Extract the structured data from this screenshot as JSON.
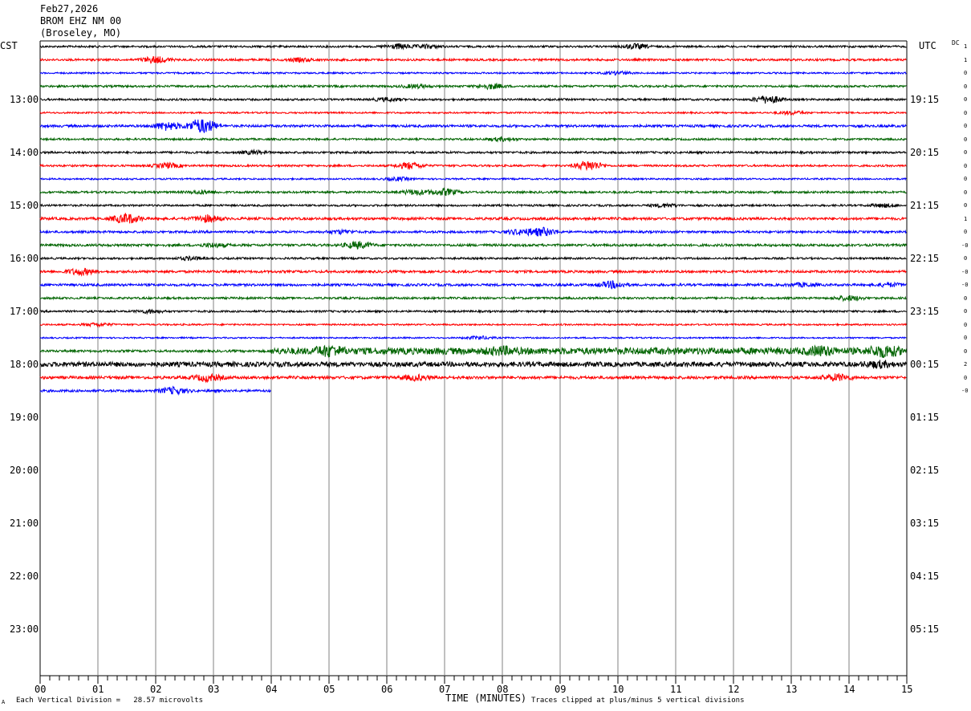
{
  "header": {
    "date": "Feb27,2026",
    "station": "BROM EHZ NM 00",
    "location": "(Broseley, MO)"
  },
  "left_tz": "CST",
  "right_tz": "UTC",
  "dc_label": "DC",
  "footer": {
    "scale": "Each Vertical Division =   28.57 microvolts",
    "clip_note": "Traces clipped at plus/minus 5 vertical divisions",
    "corner_mark": "A"
  },
  "colors": [
    "#000000",
    "#ff0000",
    "#0000ff",
    "#006400"
  ],
  "chart_data": {
    "type": "line",
    "xlabel": "TIME (MINUTES)",
    "xlim": [
      0,
      15
    ],
    "x_ticks": [
      "00",
      "01",
      "02",
      "03",
      "04",
      "05",
      "06",
      "07",
      "08",
      "09",
      "10",
      "11",
      "12",
      "13",
      "14",
      "15"
    ],
    "rows_per_hour": 4,
    "start_hour_cst": 12,
    "y_ticks_left": [
      "13:00",
      "14:00",
      "15:00",
      "16:00",
      "17:00",
      "18:00",
      "19:00",
      "20:00",
      "21:00",
      "22:00",
      "23:00"
    ],
    "y_ticks_right": [
      "19:15",
      "20:15",
      "21:15",
      "22:15",
      "23:15",
      "00:15",
      "01:15",
      "02:15",
      "03:15",
      "04:15",
      "05:15"
    ],
    "dc_offsets": [
      "1",
      "1",
      "0",
      "0",
      "0",
      "0",
      "0",
      "0",
      "0",
      "0",
      "0",
      "0",
      "0",
      "1",
      "0",
      "-0",
      "0",
      "-0",
      "-0",
      "0",
      "0",
      "0",
      "0",
      "0",
      "2",
      "0",
      "-0"
    ],
    "traces": [
      {
        "amp": 1.2,
        "events": [
          [
            6.2,
            3
          ],
          [
            10.3,
            3
          ],
          [
            6.7,
            2
          ]
        ],
        "span_min": 15
      },
      {
        "amp": 1.3,
        "events": [
          [
            2.0,
            4
          ],
          [
            4.5,
            2
          ]
        ],
        "span_min": 15
      },
      {
        "amp": 1.0,
        "events": [
          [
            10.0,
            2
          ]
        ],
        "span_min": 15
      },
      {
        "amp": 1.3,
        "events": [
          [
            7.8,
            3
          ],
          [
            6.5,
            2
          ]
        ],
        "span_min": 15
      },
      {
        "amp": 1.2,
        "events": [
          [
            12.6,
            5
          ],
          [
            6.0,
            2
          ]
        ],
        "span_min": 15
      },
      {
        "amp": 1.0,
        "events": [
          [
            13.0,
            2
          ]
        ],
        "span_min": 15
      },
      {
        "amp": 1.5,
        "events": [
          [
            2.8,
            10
          ],
          [
            2.2,
            5
          ]
        ],
        "span_min": 15
      },
      {
        "amp": 1.2,
        "events": [
          [
            8.0,
            2
          ]
        ],
        "span_min": 15
      },
      {
        "amp": 1.3,
        "events": [
          [
            3.7,
            2
          ]
        ],
        "span_min": 15
      },
      {
        "amp": 1.2,
        "events": [
          [
            9.5,
            6
          ],
          [
            6.4,
            4
          ],
          [
            2.2,
            3
          ]
        ],
        "span_min": 15
      },
      {
        "amp": 1.0,
        "events": [
          [
            6.2,
            2
          ]
        ],
        "span_min": 15
      },
      {
        "amp": 1.3,
        "events": [
          [
            7.0,
            4
          ],
          [
            6.5,
            3
          ],
          [
            2.8,
            2
          ]
        ],
        "span_min": 15
      },
      {
        "amp": 1.2,
        "events": [
          [
            10.8,
            2
          ],
          [
            14.6,
            2
          ]
        ],
        "span_min": 15
      },
      {
        "amp": 1.6,
        "events": [
          [
            1.5,
            6
          ],
          [
            2.9,
            4
          ]
        ],
        "span_min": 15
      },
      {
        "amp": 1.4,
        "events": [
          [
            8.7,
            5
          ],
          [
            8.3,
            3
          ],
          [
            5.2,
            2
          ]
        ],
        "span_min": 15
      },
      {
        "amp": 1.5,
        "events": [
          [
            5.5,
            4
          ],
          [
            3.0,
            2
          ]
        ],
        "span_min": 15
      },
      {
        "amp": 1.2,
        "events": [
          [
            2.6,
            2
          ]
        ],
        "span_min": 15
      },
      {
        "amp": 1.5,
        "events": [
          [
            0.7,
            4
          ]
        ],
        "span_min": 15
      },
      {
        "amp": 1.5,
        "events": [
          [
            9.9,
            4
          ],
          [
            13.2,
            2
          ],
          [
            14.7,
            2
          ]
        ],
        "span_min": 15
      },
      {
        "amp": 1.3,
        "events": [
          [
            14.0,
            3
          ]
        ],
        "span_min": 15
      },
      {
        "amp": 1.2,
        "events": [
          [
            1.9,
            2
          ]
        ],
        "span_min": 15
      },
      {
        "amp": 1.0,
        "events": [
          [
            1.0,
            2
          ]
        ],
        "span_min": 15
      },
      {
        "amp": 0.9,
        "events": [
          [
            7.6,
            2
          ]
        ],
        "span_min": 15
      },
      {
        "amp": 1.4,
        "events": [
          [
            5.0,
            5
          ],
          [
            14.6,
            6
          ],
          [
            13.5,
            4
          ],
          [
            8.0,
            3
          ]
        ],
        "noisy_from": 4.0,
        "span_min": 15
      },
      {
        "amp": 3.0,
        "events": [
          [
            14.5,
            3
          ]
        ],
        "span_min": 15
      },
      {
        "amp": 1.8,
        "events": [
          [
            2.9,
            4
          ],
          [
            6.5,
            3
          ],
          [
            13.8,
            4
          ]
        ],
        "span_min": 15
      },
      {
        "amp": 1.5,
        "events": [
          [
            2.3,
            4
          ]
        ],
        "span_min": 4
      }
    ]
  }
}
